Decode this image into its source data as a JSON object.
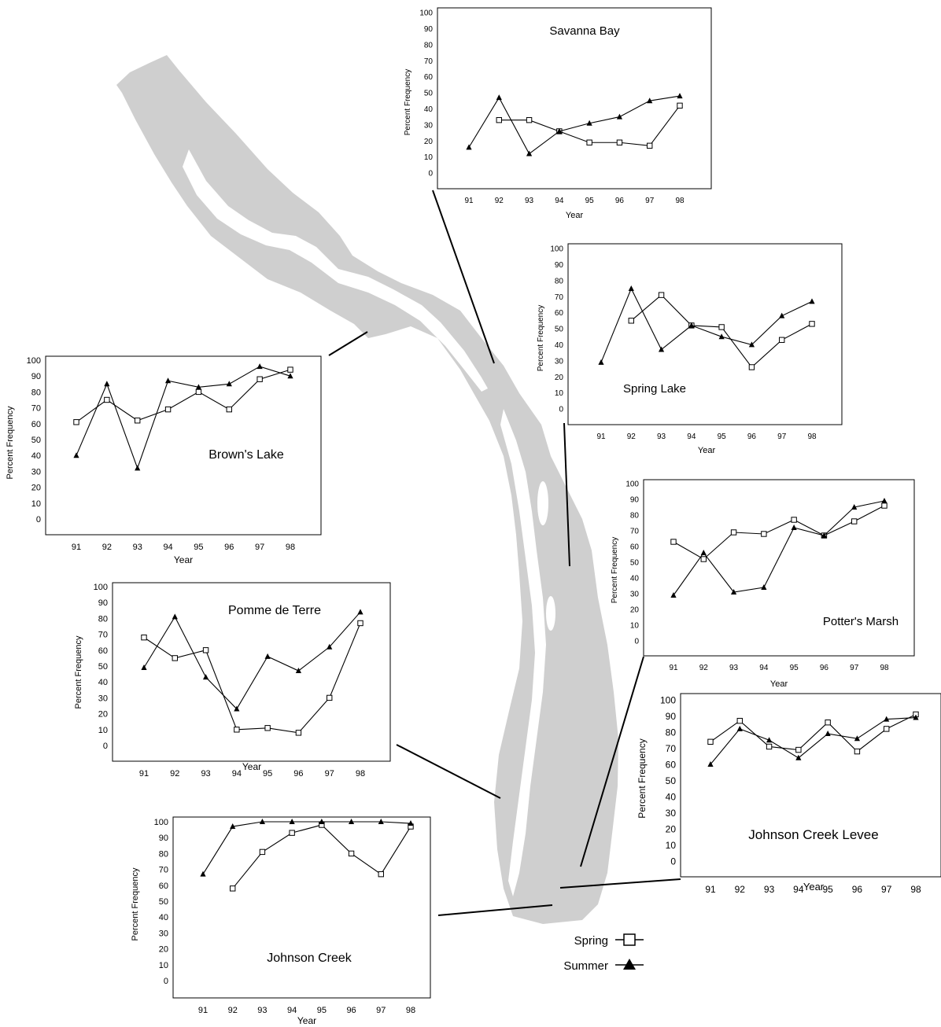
{
  "legend": {
    "spring_label": "Spring",
    "summer_label": "Summer"
  },
  "colors": {
    "map_fill": "#cfcfcf",
    "line": "#000000",
    "frame": "#000000"
  },
  "chart_data": [
    {
      "type": "line",
      "title": "Savanna Bay",
      "xlabel": "Year",
      "ylabel": "Percent Frequency",
      "ylim": [
        0,
        100
      ],
      "y_ticks": [
        0,
        10,
        20,
        30,
        40,
        50,
        60,
        70,
        80,
        90,
        100
      ],
      "categories": [
        "91",
        "92",
        "93",
        "94",
        "95",
        "96",
        "97",
        "98"
      ],
      "series": [
        {
          "name": "Spring",
          "marker": "square-open",
          "values": [
            null,
            33,
            33,
            26,
            19,
            19,
            17,
            42
          ]
        },
        {
          "name": "Summer",
          "marker": "triangle-filled",
          "values": [
            16,
            47,
            12,
            26,
            31,
            35,
            45,
            48
          ]
        }
      ]
    },
    {
      "type": "line",
      "title": "Spring Lake",
      "xlabel": "Year",
      "ylabel": "Percent Frequency",
      "ylim": [
        0,
        100
      ],
      "y_ticks": [
        0,
        10,
        20,
        30,
        40,
        50,
        60,
        70,
        80,
        90,
        100
      ],
      "categories": [
        "91",
        "92",
        "93",
        "94",
        "95",
        "96",
        "97",
        "98"
      ],
      "series": [
        {
          "name": "Spring",
          "marker": "square-open",
          "values": [
            null,
            55,
            71,
            52,
            51,
            26,
            43,
            53
          ]
        },
        {
          "name": "Summer",
          "marker": "triangle-filled",
          "values": [
            29,
            75,
            37,
            52,
            45,
            40,
            58,
            67
          ]
        }
      ]
    },
    {
      "type": "line",
      "title": "Brown's Lake",
      "xlabel": "Year",
      "ylabel": "Percent Frequency",
      "ylim": [
        0,
        100
      ],
      "y_ticks": [
        0,
        10,
        20,
        30,
        40,
        50,
        60,
        70,
        80,
        90,
        100
      ],
      "categories": [
        "91",
        "92",
        "93",
        "94",
        "95",
        "96",
        "97",
        "98"
      ],
      "series": [
        {
          "name": "Spring",
          "marker": "square-open",
          "values": [
            61,
            75,
            62,
            69,
            80,
            69,
            88,
            94
          ]
        },
        {
          "name": "Summer",
          "marker": "triangle-filled",
          "values": [
            40,
            85,
            32,
            87,
            83,
            85,
            96,
            90
          ]
        }
      ]
    },
    {
      "type": "line",
      "title": "Potter's Marsh",
      "xlabel": "Year",
      "ylabel": "Percent Frequency",
      "ylim": [
        0,
        100
      ],
      "y_ticks": [
        0,
        10,
        20,
        30,
        40,
        50,
        60,
        70,
        80,
        90,
        100
      ],
      "categories": [
        "91",
        "92",
        "93",
        "94",
        "95",
        "96",
        "97",
        "98"
      ],
      "series": [
        {
          "name": "Spring",
          "marker": "square-open",
          "values": [
            63,
            52,
            69,
            68,
            77,
            67,
            76,
            86
          ]
        },
        {
          "name": "Summer",
          "marker": "triangle-filled",
          "values": [
            29,
            56,
            31,
            34,
            72,
            67,
            85,
            89
          ]
        }
      ]
    },
    {
      "type": "line",
      "title": "Pomme de Terre",
      "xlabel": "Year",
      "ylabel": "Percent Frequency",
      "ylim": [
        0,
        100
      ],
      "y_ticks": [
        0,
        10,
        20,
        30,
        40,
        50,
        60,
        70,
        80,
        90,
        100
      ],
      "categories": [
        "91",
        "92",
        "93",
        "94",
        "95",
        "96",
        "97",
        "98"
      ],
      "series": [
        {
          "name": "Spring",
          "marker": "square-open",
          "values": [
            68,
            55,
            60,
            10,
            11,
            8,
            30,
            77
          ]
        },
        {
          "name": "Summer",
          "marker": "triangle-filled",
          "values": [
            49,
            81,
            43,
            23,
            56,
            47,
            62,
            84
          ]
        }
      ]
    },
    {
      "type": "line",
      "title": "Johnson Creek Levee",
      "xlabel": "Year",
      "ylabel": "Percent Frequency",
      "ylim": [
        0,
        100
      ],
      "y_ticks": [
        0,
        10,
        20,
        30,
        40,
        50,
        60,
        70,
        80,
        90,
        100
      ],
      "categories": [
        "91",
        "92",
        "93",
        "94",
        "95",
        "96",
        "97",
        "98"
      ],
      "series": [
        {
          "name": "Spring",
          "marker": "square-open",
          "values": [
            74,
            87,
            71,
            69,
            86,
            68,
            82,
            91
          ]
        },
        {
          "name": "Summer",
          "marker": "triangle-filled",
          "values": [
            60,
            82,
            75,
            64,
            79,
            76,
            88,
            89
          ]
        }
      ]
    },
    {
      "type": "line",
      "title": "Johnson Creek",
      "xlabel": "Year",
      "ylabel": "Percent Frequency",
      "ylim": [
        0,
        100
      ],
      "y_ticks": [
        0,
        10,
        20,
        30,
        40,
        50,
        60,
        70,
        80,
        90,
        100
      ],
      "categories": [
        "91",
        "92",
        "93",
        "94",
        "95",
        "96",
        "97",
        "98"
      ],
      "series": [
        {
          "name": "Spring",
          "marker": "square-open",
          "values": [
            null,
            58,
            81,
            93,
            98,
            80,
            67,
            97
          ]
        },
        {
          "name": "Summer",
          "marker": "triangle-filled",
          "values": [
            67,
            97,
            100,
            100,
            100,
            100,
            100,
            99
          ]
        }
      ]
    }
  ]
}
